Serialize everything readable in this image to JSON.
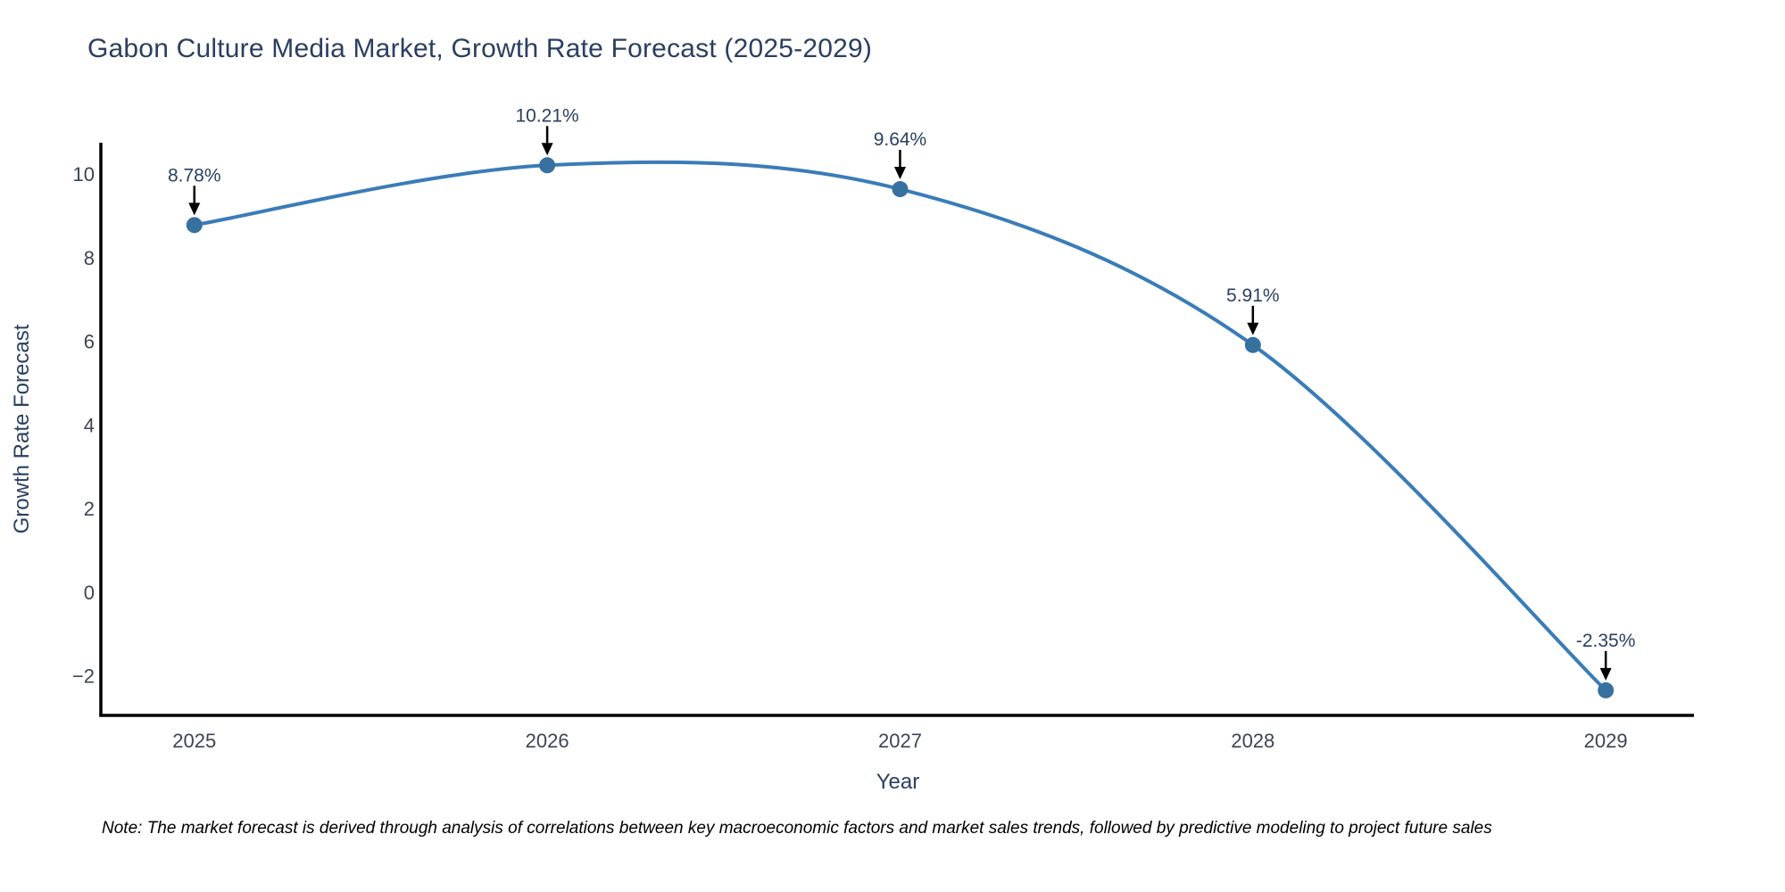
{
  "page": {
    "background": "#ffffff"
  },
  "chart": {
    "title": "Gabon Culture Media Market, Growth Rate Forecast (2025-2029)",
    "note": "Note: The market forecast is derived through analysis of correlations between key macroeconomic factors and market sales trends, followed by predictive modeling to project future sales",
    "colors": {
      "line": "#3a7cb8",
      "marker": "#36719f",
      "axis": "#000000",
      "arrow": "#000000",
      "title_text": "#2a3f5f",
      "tick_text": "#3b4553",
      "annotation_text": "#2a3f5f",
      "note_text": "#000000"
    }
  },
  "chart_data": {
    "type": "line",
    "title": "Gabon Culture Media Market, Growth Rate Forecast (2025-2029)",
    "x": [
      2025,
      2026,
      2027,
      2028,
      2029
    ],
    "y": [
      8.78,
      10.21,
      9.64,
      5.91,
      -2.35
    ],
    "point_labels": [
      "8.78%",
      "10.21%",
      "9.64%",
      "5.91%",
      "-2.35%"
    ],
    "xlabel": "Year",
    "ylabel": "Growth Rate Forecast",
    "x_ticks": [
      "2025",
      "2026",
      "2027",
      "2028",
      "2029"
    ],
    "y_ticks": [
      10,
      8,
      6,
      4,
      2,
      0,
      -2
    ],
    "xlim": [
      2024.735,
      2029.25
    ],
    "ylim": [
      -2.95,
      10.75
    ],
    "grid": false,
    "legend": "none",
    "line_shape": "spline",
    "marker": "circle"
  }
}
